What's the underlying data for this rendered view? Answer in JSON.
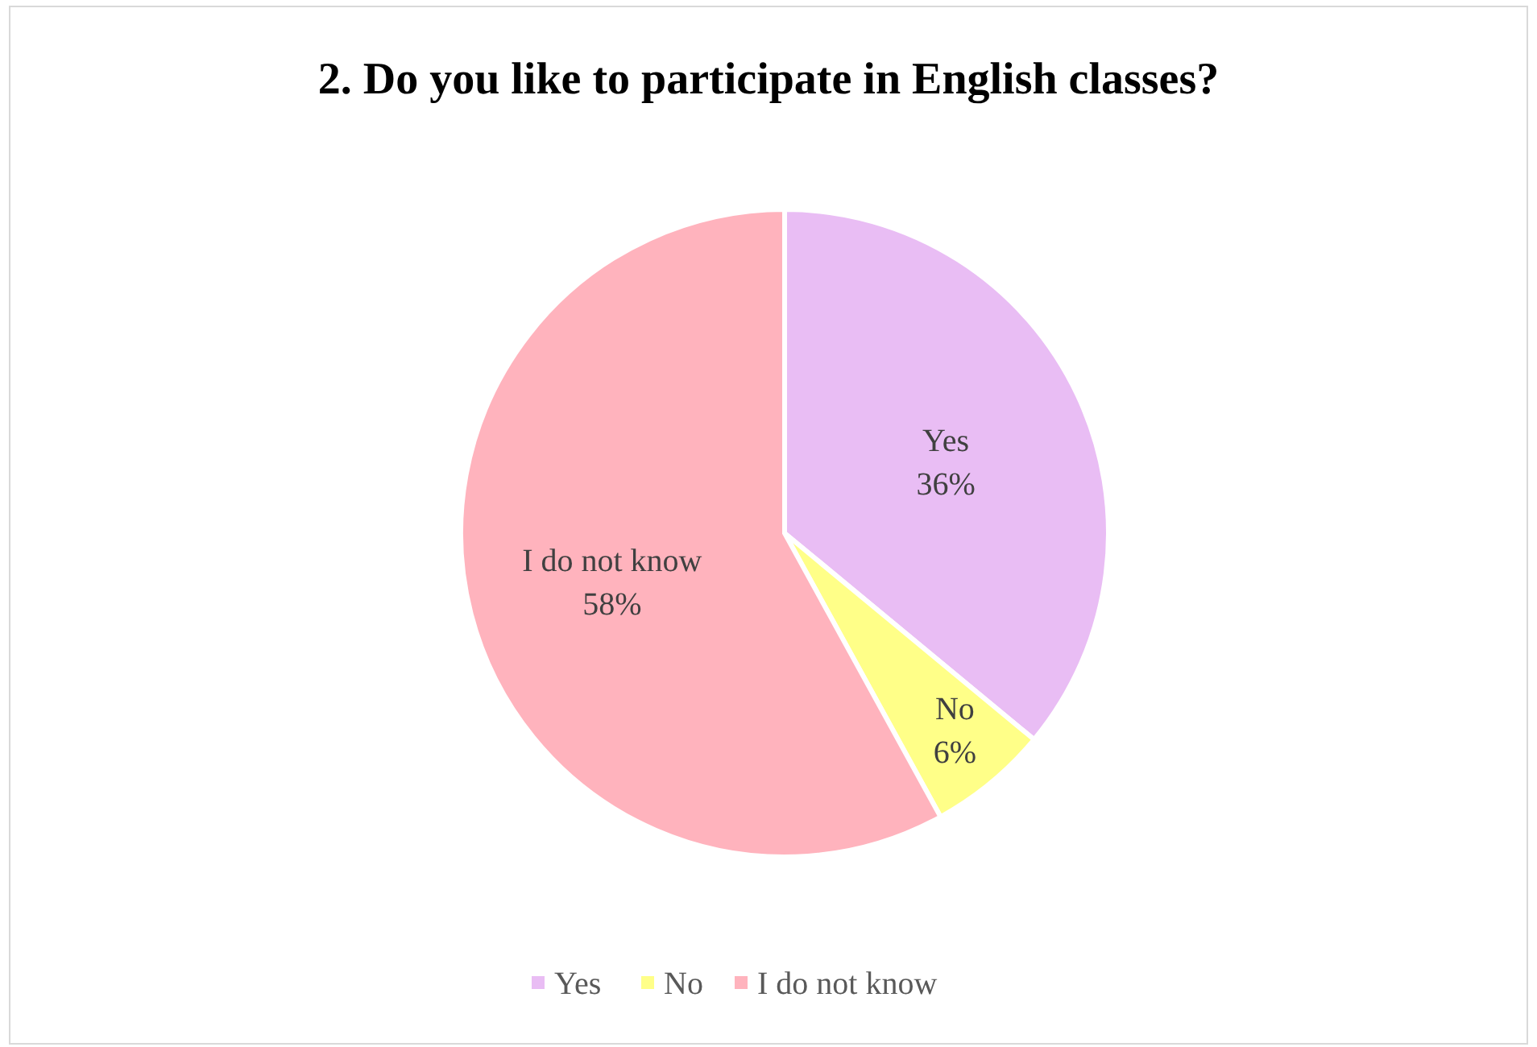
{
  "chart_data": {
    "type": "pie",
    "title": "2. Do you like to participate in English classes?",
    "categories": [
      "Yes",
      "No",
      "I do not know"
    ],
    "values": [
      36,
      6,
      58
    ],
    "colors": [
      "#e9bdf4",
      "#ffff88",
      "#ffb3bd"
    ],
    "value_labels": [
      "36%",
      "6%",
      "58%"
    ],
    "legend": "bottom"
  }
}
